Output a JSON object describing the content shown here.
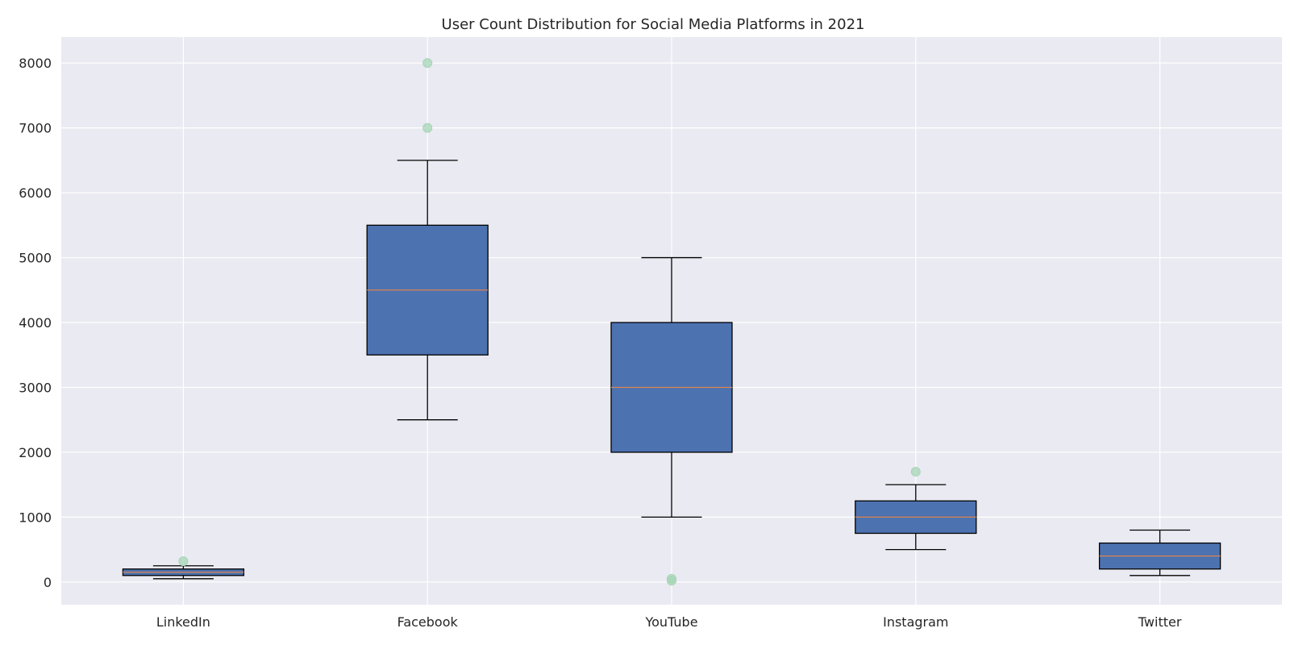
{
  "chart_data": {
    "type": "box",
    "title": "User Count Distribution for Social Media Platforms in 2021",
    "xlabel": "",
    "ylabel": "",
    "categories": [
      "LinkedIn",
      "Facebook",
      "YouTube",
      "Instagram",
      "Twitter"
    ],
    "boxes": [
      {
        "category": "LinkedIn",
        "whisker_low": 50,
        "q1": 100,
        "median": 150,
        "q3": 200,
        "whisker_high": 250,
        "outliers": [
          320
        ]
      },
      {
        "category": "Facebook",
        "whisker_low": 2500,
        "q1": 3500,
        "median": 4500,
        "q3": 5500,
        "whisker_high": 6500,
        "outliers": [
          7000,
          8000
        ]
      },
      {
        "category": "YouTube",
        "whisker_low": 1000,
        "q1": 2000,
        "median": 3000,
        "q3": 4000,
        "whisker_high": 5000,
        "outliers": [
          20,
          50
        ]
      },
      {
        "category": "Instagram",
        "whisker_low": 500,
        "q1": 750,
        "median": 1000,
        "q3": 1250,
        "whisker_high": 1500,
        "outliers": [
          1700
        ]
      },
      {
        "category": "Twitter",
        "whisker_low": 100,
        "q1": 200,
        "median": 400,
        "q3": 600,
        "whisker_high": 800,
        "outliers": []
      }
    ],
    "ylim": [
      -350,
      8400
    ],
    "yticks": [
      0,
      1000,
      2000,
      3000,
      4000,
      5000,
      6000,
      7000,
      8000
    ],
    "grid": true,
    "colors": {
      "background": "#eaeaf2",
      "grid": "#ffffff",
      "box_fill": "#4c72b0",
      "box_edge": "#000000",
      "median": "#dd8452",
      "outlier": "#a6d5b5"
    }
  }
}
